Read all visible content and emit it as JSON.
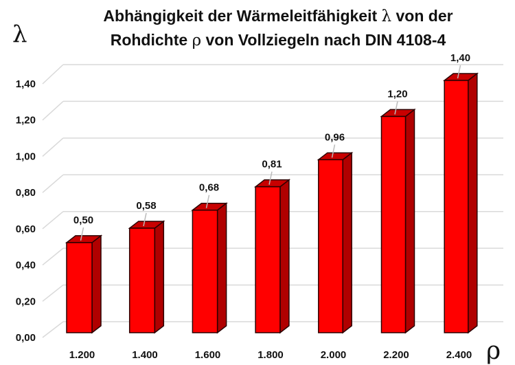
{
  "chart_data": {
    "type": "bar",
    "style": "3d-column",
    "title_line1_pre": "Abhängigkeit der Wärmeleitfähigkeit ",
    "title_sym1": "λ",
    "title_line1_post": " von der",
    "title_line2_pre": "Rohdichte ",
    "title_sym2": "ρ",
    "title_line2_post": " von Vollziegeln nach DIN 4108-4",
    "ylabel": "λ",
    "xlabel": "ρ",
    "categories": [
      "1.200",
      "1.400",
      "1.600",
      "1.800",
      "2.000",
      "2.200",
      "2.400"
    ],
    "values": [
      0.5,
      0.58,
      0.68,
      0.81,
      0.96,
      1.2,
      1.4
    ],
    "data_labels": [
      "0,50",
      "0,58",
      "0,68",
      "0,81",
      "0,96",
      "1,20",
      "1,40"
    ],
    "ylim": [
      0,
      1.4
    ],
    "yticks": [
      "0,00",
      "0,20",
      "0,40",
      "0,60",
      "0,80",
      "1,00",
      "1,20",
      "1,40"
    ],
    "grid": true,
    "legend": "none",
    "colors": {
      "bar_front": "#ff0000",
      "bar_side": "#b00000",
      "bar_top": "#c80000",
      "outline": "#2a0000",
      "grid": "#d9d9d9"
    }
  }
}
